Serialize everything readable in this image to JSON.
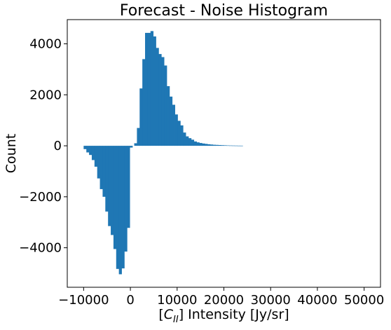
{
  "chart_data": {
    "type": "bar",
    "title": "Forecast - Noise Histogram",
    "xlabel": "[C_{II}] Intensity [Jy/sr]",
    "xlabel_parts": {
      "prefix": "[",
      "symbol": "C",
      "subscript": "II",
      "suffix": "] Intensity [Jy/sr]"
    },
    "ylabel": "Count",
    "xlim": [
      -13500,
      53500
    ],
    "ylim": [
      -5550,
      4950
    ],
    "xticks": [
      -10000,
      0,
      10000,
      20000,
      30000,
      40000,
      50000
    ],
    "xtick_labels": [
      "−10000",
      "0",
      "10000",
      "20000",
      "30000",
      "40000",
      "50000"
    ],
    "yticks": [
      -4000,
      -2000,
      0,
      2000,
      4000
    ],
    "ytick_labels": [
      "−4000",
      "−2000",
      "0",
      "2000",
      "4000"
    ],
    "bar_color": "#1f77b4",
    "bin_width": 580,
    "series": [
      {
        "bins_left": [
          -10000,
          -9420,
          -8840,
          -8260,
          -7680,
          -7100,
          -6520,
          -5940,
          -5360,
          -4780,
          -4200,
          -3620,
          -3040,
          -2460,
          -1880,
          -1300,
          -720,
          -140
        ],
        "counts": [
          -130,
          -260,
          -360,
          -560,
          -820,
          -1280,
          -1700,
          -2000,
          -2580,
          -3150,
          -3500,
          -4050,
          -4830,
          -5040,
          -4810,
          -4150,
          -3220,
          -70
        ]
      },
      {
        "bins_left": [
          820,
          1400,
          1980,
          2560,
          3140,
          3720,
          4300,
          4880,
          5460,
          6040,
          6620,
          7200,
          7780,
          8360,
          8940,
          9520,
          10100,
          10680,
          11260,
          11840,
          12420,
          13000,
          13580,
          14160,
          14740,
          15320,
          15900,
          16480,
          17060,
          17640,
          18220,
          18800,
          19380,
          19960,
          20540,
          21120,
          21700,
          22280,
          22860,
          23440
        ],
        "counts": [
          100,
          700,
          2250,
          3400,
          4430,
          4430,
          4500,
          4290,
          3840,
          3600,
          3480,
          3150,
          2340,
          1930,
          1610,
          1230,
          980,
          800,
          520,
          370,
          300,
          240,
          170,
          135,
          110,
          90,
          75,
          60,
          50,
          40,
          35,
          30,
          25,
          20,
          15,
          12,
          10,
          8,
          6,
          5
        ]
      }
    ]
  }
}
